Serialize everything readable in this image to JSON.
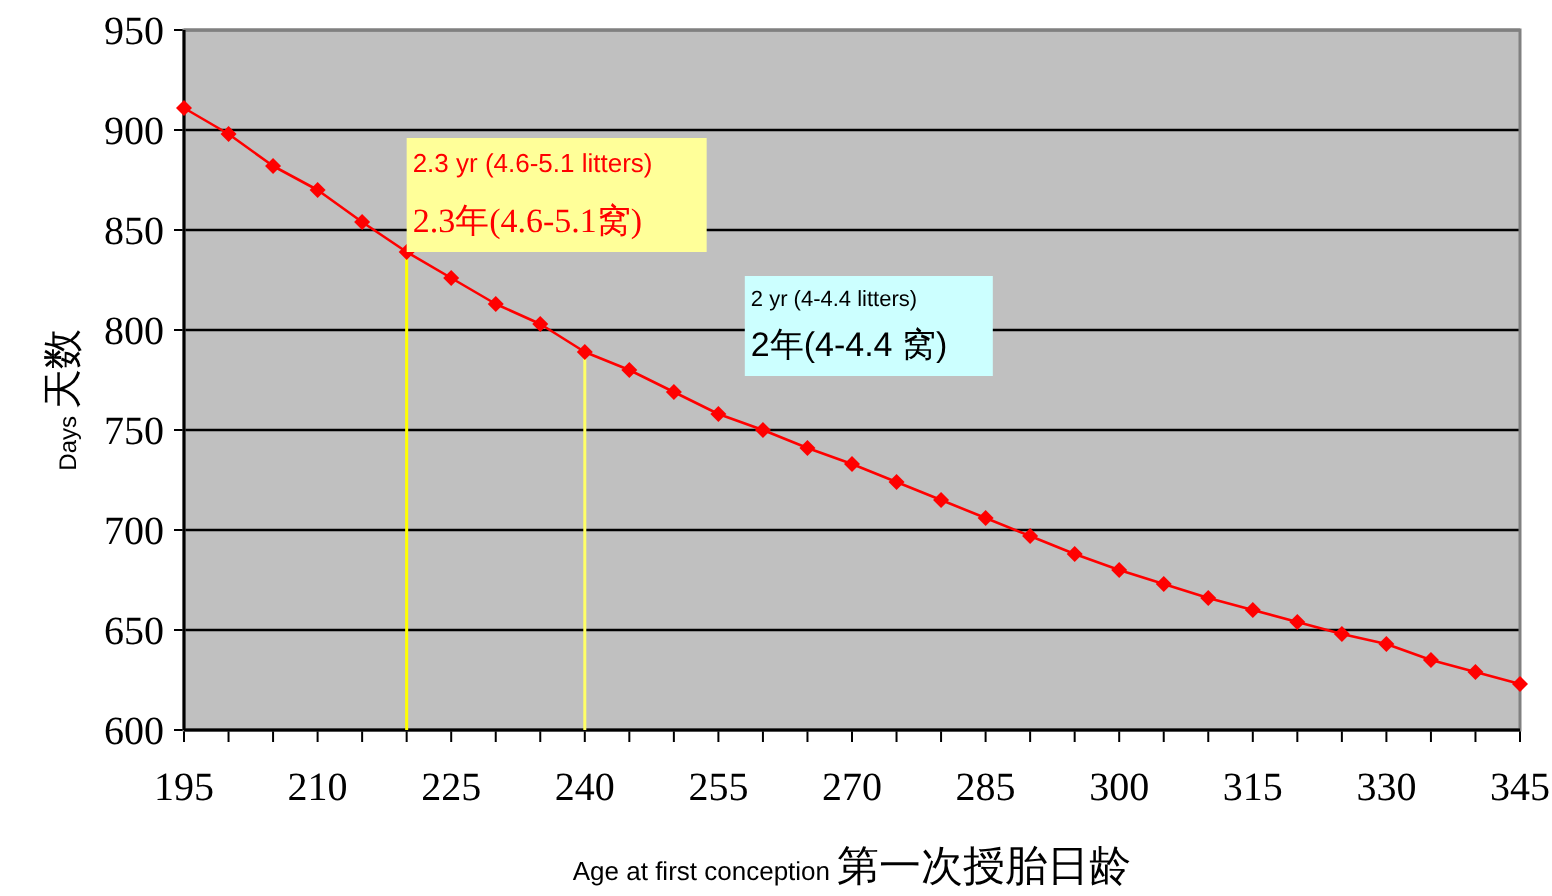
{
  "chart_data": {
    "type": "line",
    "xlabel": "Age at first conception 第一次授胎日龄",
    "ylabel": "Days 天数",
    "x": [
      195,
      200,
      205,
      210,
      215,
      220,
      225,
      230,
      235,
      240,
      245,
      250,
      255,
      260,
      265,
      270,
      275,
      280,
      285,
      290,
      295,
      300,
      305,
      310,
      315,
      320,
      325,
      330,
      335,
      340,
      345
    ],
    "series": [
      {
        "color": "#ff0000",
        "values": [
          911,
          898,
          882,
          870,
          854,
          839,
          826,
          813,
          803,
          789,
          780,
          769,
          758,
          750,
          741,
          733,
          724,
          715,
          706,
          697,
          688,
          680,
          673,
          666,
          660,
          654,
          648,
          643,
          635,
          629,
          623
        ]
      }
    ],
    "xlim": [
      195,
      345
    ],
    "xticks": [
      195,
      {
        "value": 200,
        "label": null
      },
      {
        "value": 205,
        "label": null
      },
      210,
      {
        "value": 215,
        "label": null
      },
      {
        "value": 220,
        "label": null
      },
      225,
      {
        "value": 230,
        "label": null
      },
      {
        "value": 235,
        "label": null
      },
      240,
      {
        "value": 245,
        "label": null
      },
      {
        "value": 250,
        "label": null
      },
      255,
      {
        "value": 260,
        "label": null
      },
      {
        "value": 265,
        "label": null
      },
      270,
      {
        "value": 275,
        "label": null
      },
      {
        "value": 280,
        "label": null
      },
      285,
      {
        "value": 290,
        "label": null
      },
      {
        "value": 295,
        "label": null
      },
      300,
      {
        "value": 305,
        "label": null
      },
      {
        "value": 310,
        "label": null
      },
      315,
      {
        "value": 320,
        "label": null
      },
      {
        "value": 325,
        "label": null
      },
      330,
      {
        "value": 335,
        "label": null
      },
      {
        "value": 340,
        "label": null
      },
      345
    ],
    "ylim": [
      600,
      950
    ],
    "yticks": [
      600,
      650,
      700,
      750,
      800,
      850,
      900,
      950
    ],
    "grid": "y",
    "marker": "diamond",
    "line_style": "solid",
    "ref_lines": [
      {
        "axis": "x",
        "value": 220,
        "color": "#ffff00"
      },
      {
        "axis": "x",
        "value": 240,
        "color": "#ffff66"
      }
    ],
    "annotations": [
      "2.3 yr (4.6-5.1 litters)",
      "2.3年(4.6-5.1窝)",
      "2 yr (4-4.4 litters)",
      "2年(4-4.4 窝)"
    ]
  }
}
